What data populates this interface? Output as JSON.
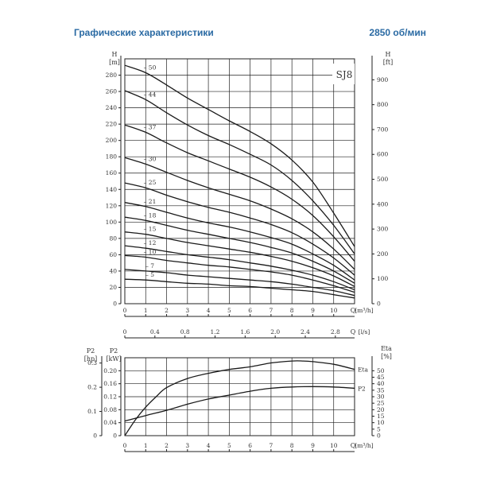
{
  "header": {
    "title": "Графические характеристики",
    "speed": "2850 об/мин"
  },
  "chart_data": [
    {
      "type": "line",
      "model_label": "SJ8",
      "x_label": "Q",
      "x_unit": "[m³/h]",
      "x2_label": "Q",
      "x2_unit": "[l/s]",
      "y_left_label": "H",
      "y_left_unit": "[m]",
      "y_right_label": "H",
      "y_right_unit": "[ft]",
      "xlim": [
        0,
        11
      ],
      "ylim": [
        0,
        300
      ],
      "y_right_lim": [
        0,
        984.25
      ],
      "x_ticks": [
        0,
        1,
        2,
        3,
        4,
        5,
        6,
        7,
        8,
        9,
        10
      ],
      "x2_ticks": [
        {
          "label": "0",
          "ls": 0
        },
        {
          "label": "0.4",
          "ls": 0.4
        },
        {
          "label": "0.8",
          "ls": 0.8
        },
        {
          "label": "1.2",
          "ls": 1.2
        },
        {
          "label": "1.6",
          "ls": 1.6
        },
        {
          "label": "2.0",
          "ls": 2.0
        },
        {
          "label": "2.4",
          "ls": 2.4
        },
        {
          "label": "2.8",
          "ls": 2.8
        }
      ],
      "y_ticks": [
        0,
        20,
        40,
        60,
        80,
        100,
        120,
        140,
        160,
        180,
        200,
        220,
        240,
        260,
        280
      ],
      "y_right_ticks": [
        0,
        100,
        200,
        300,
        400,
        500,
        600,
        700,
        800,
        900
      ],
      "grid": true,
      "series": [
        {
          "name": "50",
          "x": [
            0,
            1,
            2,
            3,
            4,
            5,
            6,
            7,
            8,
            9,
            10,
            11
          ],
          "y": [
            292,
            283,
            268,
            252,
            238,
            224,
            211,
            196,
            176,
            149,
            111,
            70
          ]
        },
        {
          "name": "44",
          "x": [
            0,
            1,
            2,
            3,
            4,
            5,
            6,
            7,
            8,
            9,
            10,
            11
          ],
          "y": [
            261,
            250,
            234,
            219,
            206,
            195,
            183,
            170,
            151,
            126,
            96,
            61
          ]
        },
        {
          "name": "37",
          "x": [
            0,
            1,
            2,
            3,
            4,
            5,
            6,
            7,
            8,
            9,
            10,
            11
          ],
          "y": [
            219,
            210,
            197,
            185,
            175,
            165,
            155,
            143,
            128,
            108,
            82,
            52
          ]
        },
        {
          "name": "30",
          "x": [
            0,
            1,
            2,
            3,
            4,
            5,
            6,
            7,
            8,
            9,
            10,
            11
          ],
          "y": [
            179,
            171,
            161,
            151,
            142,
            134,
            126,
            116,
            104,
            88,
            67,
            42
          ]
        },
        {
          "name": "25",
          "x": [
            0,
            1,
            2,
            3,
            4,
            5,
            6,
            7,
            8,
            9,
            10,
            11
          ],
          "y": [
            148,
            142,
            133,
            125,
            118,
            112,
            105,
            97,
            87,
            73,
            56,
            35
          ]
        },
        {
          "name": "21",
          "x": [
            0,
            1,
            2,
            3,
            4,
            5,
            6,
            7,
            8,
            9,
            10,
            11
          ],
          "y": [
            124,
            119,
            112,
            105,
            99,
            94,
            88,
            81,
            73,
            61,
            47,
            29
          ]
        },
        {
          "name": "18",
          "x": [
            0,
            1,
            2,
            3,
            4,
            5,
            6,
            7,
            8,
            9,
            10,
            11
          ],
          "y": [
            106,
            102,
            96,
            90,
            85,
            80,
            75,
            69,
            62,
            52,
            40,
            25
          ]
        },
        {
          "name": "15",
          "x": [
            0,
            1,
            2,
            3,
            4,
            5,
            6,
            7,
            8,
            9,
            10,
            11
          ],
          "y": [
            88,
            85,
            80,
            75,
            71,
            67,
            63,
            58,
            52,
            44,
            34,
            21
          ]
        },
        {
          "name": "12",
          "x": [
            0,
            1,
            2,
            3,
            4,
            5,
            6,
            7,
            8,
            9,
            10,
            11
          ],
          "y": [
            71,
            68,
            64,
            60,
            57,
            54,
            50,
            46,
            41,
            35,
            27,
            17
          ]
        },
        {
          "name": "10",
          "x": [
            0,
            1,
            2,
            3,
            4,
            5,
            6,
            7,
            8,
            9,
            10,
            11
          ],
          "y": [
            59,
            57,
            53,
            50,
            47,
            45,
            42,
            39,
            35,
            29,
            22,
            14
          ]
        },
        {
          "name": "7",
          "x": [
            0,
            1,
            2,
            3,
            4,
            5,
            6,
            7,
            8,
            9,
            10,
            11
          ],
          "y": [
            42,
            40,
            38,
            35,
            33,
            31,
            29,
            27,
            24,
            20,
            16,
            10
          ]
        },
        {
          "name": "5",
          "x": [
            0,
            1,
            2,
            3,
            4,
            5,
            6,
            7,
            8,
            9,
            10,
            11
          ],
          "y": [
            30,
            29,
            27,
            25,
            24,
            22,
            21,
            19,
            17,
            15,
            11,
            7
          ]
        }
      ]
    },
    {
      "type": "line",
      "x_label": "Q",
      "x_unit": "[m³/h]",
      "y_left_label": "P2",
      "y_left_unit": "[kW]",
      "y_hp_label": "P2",
      "y_hp_unit": "[hp]",
      "y_right_label": "Eta",
      "y_right_unit": "[%]",
      "xlim": [
        0,
        11
      ],
      "ylim": [
        0,
        0.24
      ],
      "y_right_lim": [
        0,
        60
      ],
      "x_ticks": [
        0,
        1,
        2,
        3,
        4,
        5,
        6,
        7,
        8,
        9,
        10
      ],
      "y_ticks": [
        "0",
        "0.04",
        "0.08",
        "0.12",
        "0.16",
        "0.20"
      ],
      "y_hp_ticks": [
        "0",
        "0.1",
        "0.2",
        "0.3"
      ],
      "y_right_ticks": [
        0,
        5,
        10,
        15,
        20,
        25,
        30,
        35,
        40,
        45,
        50
      ],
      "grid": true,
      "series": [
        {
          "name": "Eta",
          "axis": "right",
          "x": [
            0,
            0.5,
            1,
            1.5,
            2,
            3,
            4,
            5,
            6,
            7,
            8,
            8.5,
            9,
            10,
            11
          ],
          "y": [
            0,
            12,
            22,
            30,
            37,
            44,
            48,
            51,
            53,
            56,
            57.5,
            57.5,
            57,
            55,
            51
          ]
        },
        {
          "name": "P2",
          "axis": "left",
          "x": [
            0,
            1,
            2,
            3,
            4,
            5,
            6,
            7,
            8,
            9,
            10,
            11
          ],
          "y": [
            0.045,
            0.062,
            0.078,
            0.097,
            0.113,
            0.125,
            0.137,
            0.146,
            0.15,
            0.151,
            0.15,
            0.146
          ]
        }
      ]
    }
  ]
}
